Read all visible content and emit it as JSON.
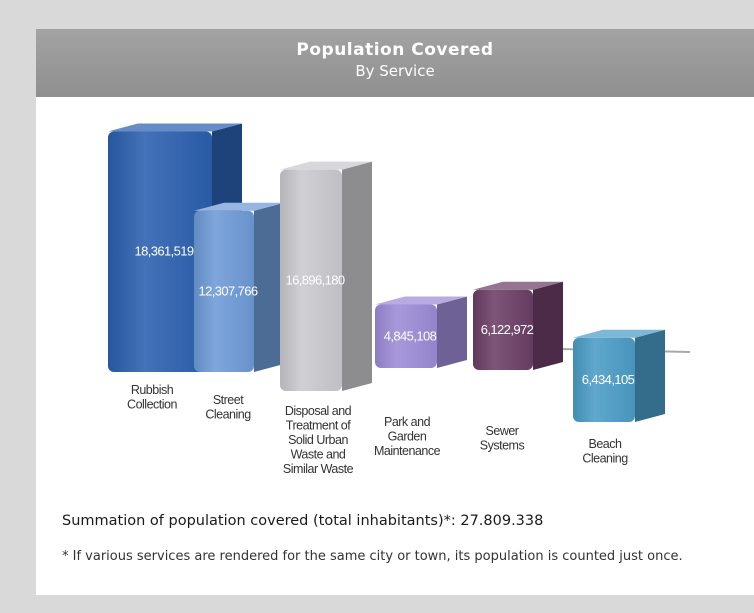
{
  "header": {
    "title": "Population Covered",
    "subtitle": "By Service"
  },
  "chart_data": {
    "type": "bar",
    "title": "Population Covered",
    "subtitle": "By Service",
    "categories": [
      [
        "Rubbish",
        "Collection"
      ],
      [
        "Street",
        "Cleaning"
      ],
      [
        "Disposal and",
        "Treatment of",
        "Solid Urban",
        "Waste and",
        "Similar Waste"
      ],
      [
        "Park and",
        "Garden",
        "Maintenance"
      ],
      [
        "Sewer",
        "Systems"
      ],
      [
        "Beach",
        "Cleaning"
      ]
    ],
    "values": [
      18361519,
      12307766,
      16896180,
      4845108,
      6122972,
      6434105
    ],
    "value_labels": [
      "18,361,519",
      "12,307,766",
      "16,896,180",
      "4,845,108",
      "6,122,972",
      "6,434,105"
    ],
    "colors": [
      "#2a5fae",
      "#6d9ad6",
      "#c9c9ce",
      "#9c8ad6",
      "#6b3e66",
      "#4a9cc6"
    ],
    "xlabel": "",
    "ylabel": ""
  },
  "summary": "Summation of population covered (total inhabitants)*: 27.809.338",
  "footnote": "* If various services are rendered for the same city or town, its population is counted just once."
}
